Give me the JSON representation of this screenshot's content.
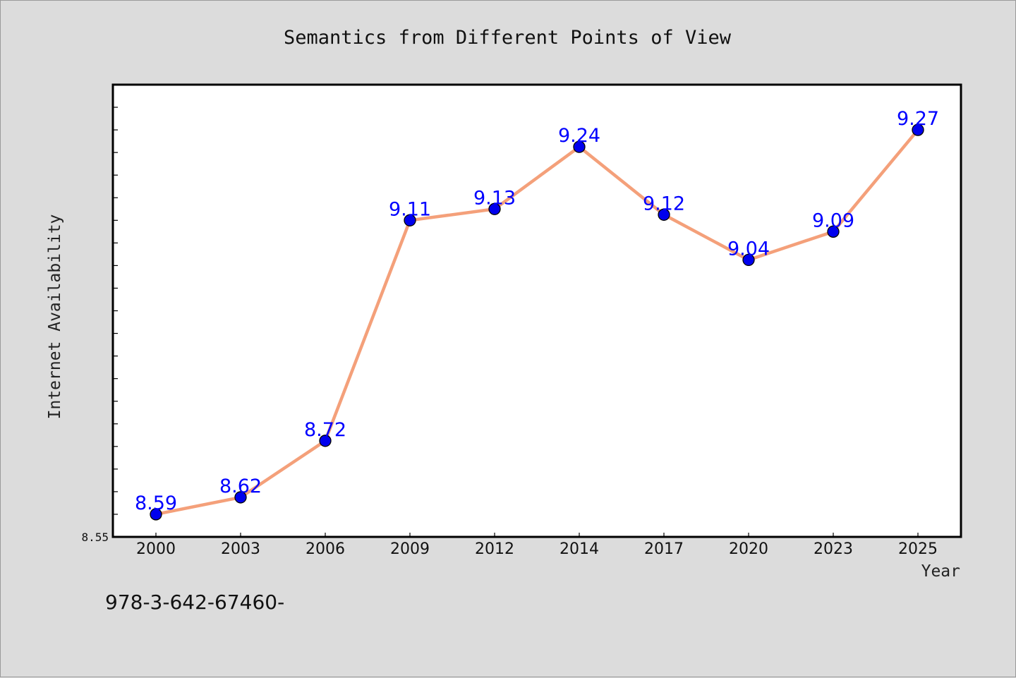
{
  "chart_data": {
    "type": "line",
    "title": "Semantics from Different Points of View",
    "xlabel": "Year",
    "ylabel": "Internet Availability",
    "categories": [
      "2000",
      "2003",
      "2006",
      "2009",
      "2012",
      "2014",
      "2017",
      "2020",
      "2023",
      "2025"
    ],
    "series": [
      {
        "values": [
          8.59,
          8.62,
          8.72,
          9.11,
          9.13,
          9.24,
          9.12,
          9.04,
          9.09,
          9.27
        ],
        "line_color": "#f4a07a",
        "marker_color": "#0000ee",
        "label_color": "#0000ff"
      }
    ],
    "ylim": [
      8.55,
      9.35
    ],
    "y_tick_labels": [
      "8.55"
    ],
    "grid": false,
    "legend": "none"
  },
  "footer": {
    "isbn_text": "978-3-642-67460-"
  },
  "colors": {
    "background": "#dcdcdc",
    "plot_background": "#ffffff",
    "axis": "#000000"
  }
}
